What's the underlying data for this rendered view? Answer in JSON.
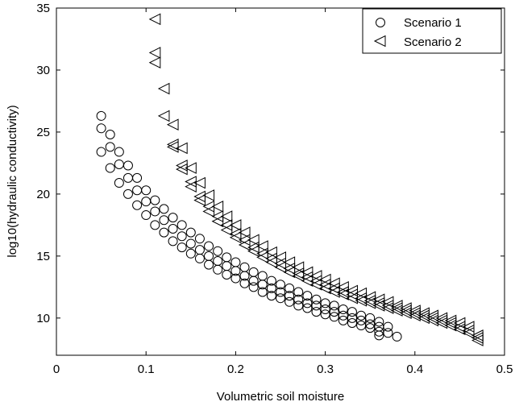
{
  "chart_data": {
    "type": "scatter",
    "xlabel": "Volumetric soil moisture",
    "ylabel": "log10(hydraulic conductivity)",
    "xlim": [
      0,
      0.5
    ],
    "ylim": [
      7,
      35
    ],
    "xticks": [
      0,
      0.1,
      0.2,
      0.3,
      0.4,
      0.5
    ],
    "xtick_labels": [
      "0",
      "0.1",
      "0.2",
      "0.3",
      "0.4",
      "0.5"
    ],
    "yticks": [
      10,
      15,
      20,
      25,
      30,
      35
    ],
    "ytick_labels": [
      "10",
      "15",
      "20",
      "25",
      "30",
      "35"
    ],
    "grid": false,
    "legend_position": "top-right",
    "series": [
      {
        "name": "Scenario 1",
        "marker": "circle",
        "color": "#000000",
        "points": [
          [
            0.05,
            26.3
          ],
          [
            0.05,
            25.3
          ],
          [
            0.05,
            23.4
          ],
          [
            0.06,
            24.8
          ],
          [
            0.06,
            23.8
          ],
          [
            0.06,
            22.1
          ],
          [
            0.07,
            23.4
          ],
          [
            0.07,
            22.4
          ],
          [
            0.07,
            20.9
          ],
          [
            0.08,
            22.3
          ],
          [
            0.08,
            21.3
          ],
          [
            0.08,
            20.0
          ],
          [
            0.09,
            21.3
          ],
          [
            0.09,
            20.3
          ],
          [
            0.09,
            19.1
          ],
          [
            0.1,
            20.3
          ],
          [
            0.1,
            19.4
          ],
          [
            0.1,
            18.3
          ],
          [
            0.11,
            19.5
          ],
          [
            0.11,
            18.6
          ],
          [
            0.11,
            17.5
          ],
          [
            0.12,
            18.8
          ],
          [
            0.12,
            17.9
          ],
          [
            0.12,
            16.9
          ],
          [
            0.13,
            18.1
          ],
          [
            0.13,
            17.2
          ],
          [
            0.13,
            16.2
          ],
          [
            0.14,
            17.5
          ],
          [
            0.14,
            16.6
          ],
          [
            0.14,
            15.7
          ],
          [
            0.15,
            16.9
          ],
          [
            0.15,
            16.0
          ],
          [
            0.15,
            15.2
          ],
          [
            0.16,
            16.4
          ],
          [
            0.16,
            15.5
          ],
          [
            0.16,
            14.8
          ],
          [
            0.17,
            15.8
          ],
          [
            0.17,
            15.0
          ],
          [
            0.17,
            14.3
          ],
          [
            0.18,
            15.4
          ],
          [
            0.18,
            14.6
          ],
          [
            0.18,
            13.9
          ],
          [
            0.19,
            14.9
          ],
          [
            0.19,
            14.2
          ],
          [
            0.19,
            13.5
          ],
          [
            0.2,
            14.5
          ],
          [
            0.2,
            13.8
          ],
          [
            0.2,
            13.2
          ],
          [
            0.21,
            14.1
          ],
          [
            0.21,
            13.4
          ],
          [
            0.21,
            12.8
          ],
          [
            0.22,
            13.7
          ],
          [
            0.22,
            13.0
          ],
          [
            0.22,
            12.5
          ],
          [
            0.23,
            13.4
          ],
          [
            0.23,
            12.7
          ],
          [
            0.23,
            12.1
          ],
          [
            0.24,
            13.0
          ],
          [
            0.24,
            12.4
          ],
          [
            0.24,
            11.8
          ],
          [
            0.25,
            12.7
          ],
          [
            0.25,
            12.1
          ],
          [
            0.25,
            11.6
          ],
          [
            0.26,
            12.4
          ],
          [
            0.26,
            11.8
          ],
          [
            0.26,
            11.3
          ],
          [
            0.27,
            12.1
          ],
          [
            0.27,
            11.5
          ],
          [
            0.27,
            11.0
          ],
          [
            0.28,
            11.8
          ],
          [
            0.28,
            11.2
          ],
          [
            0.28,
            10.8
          ],
          [
            0.29,
            11.5
          ],
          [
            0.29,
            11.0
          ],
          [
            0.29,
            10.5
          ],
          [
            0.3,
            11.2
          ],
          [
            0.3,
            10.7
          ],
          [
            0.3,
            10.3
          ],
          [
            0.31,
            11.0
          ],
          [
            0.31,
            10.5
          ],
          [
            0.31,
            10.1
          ],
          [
            0.32,
            10.7
          ],
          [
            0.32,
            10.2
          ],
          [
            0.32,
            9.8
          ],
          [
            0.33,
            10.5
          ],
          [
            0.33,
            10.0
          ],
          [
            0.33,
            9.6
          ],
          [
            0.34,
            10.2
          ],
          [
            0.34,
            9.8
          ],
          [
            0.34,
            9.4
          ],
          [
            0.35,
            10.0
          ],
          [
            0.35,
            9.5
          ],
          [
            0.35,
            9.2
          ],
          [
            0.36,
            9.7
          ],
          [
            0.36,
            9.3
          ],
          [
            0.36,
            8.9
          ],
          [
            0.36,
            8.6
          ],
          [
            0.37,
            9.3
          ],
          [
            0.37,
            8.8
          ],
          [
            0.38,
            8.5
          ]
        ]
      },
      {
        "name": "Scenario 2",
        "marker": "triangle-left",
        "color": "#000000",
        "points": [
          [
            0.11,
            34.1
          ],
          [
            0.11,
            31.4
          ],
          [
            0.11,
            30.6
          ],
          [
            0.12,
            28.5
          ],
          [
            0.12,
            26.3
          ],
          [
            0.13,
            25.6
          ],
          [
            0.13,
            24.0
          ],
          [
            0.13,
            23.8
          ],
          [
            0.14,
            23.7
          ],
          [
            0.14,
            22.3
          ],
          [
            0.14,
            22.0
          ],
          [
            0.15,
            22.1
          ],
          [
            0.15,
            21.0
          ],
          [
            0.15,
            20.6
          ],
          [
            0.16,
            20.9
          ],
          [
            0.16,
            19.8
          ],
          [
            0.16,
            19.5
          ],
          [
            0.17,
            19.9
          ],
          [
            0.17,
            19.0
          ],
          [
            0.17,
            18.6
          ],
          [
            0.18,
            19.0
          ],
          [
            0.18,
            18.2
          ],
          [
            0.18,
            17.8
          ],
          [
            0.19,
            18.2
          ],
          [
            0.19,
            17.5
          ],
          [
            0.19,
            17.1
          ],
          [
            0.2,
            17.5
          ],
          [
            0.2,
            16.8
          ],
          [
            0.2,
            16.5
          ],
          [
            0.21,
            16.9
          ],
          [
            0.21,
            16.3
          ],
          [
            0.21,
            15.9
          ],
          [
            0.22,
            16.3
          ],
          [
            0.22,
            15.7
          ],
          [
            0.22,
            15.4
          ],
          [
            0.23,
            15.8
          ],
          [
            0.23,
            15.2
          ],
          [
            0.23,
            14.9
          ],
          [
            0.24,
            15.3
          ],
          [
            0.24,
            14.8
          ],
          [
            0.24,
            14.5
          ],
          [
            0.25,
            14.9
          ],
          [
            0.25,
            14.4
          ],
          [
            0.25,
            14.1
          ],
          [
            0.26,
            14.5
          ],
          [
            0.26,
            14.0
          ],
          [
            0.26,
            13.7
          ],
          [
            0.27,
            14.1
          ],
          [
            0.27,
            13.6
          ],
          [
            0.27,
            13.4
          ],
          [
            0.28,
            13.7
          ],
          [
            0.28,
            13.3
          ],
          [
            0.28,
            13.0
          ],
          [
            0.29,
            13.4
          ],
          [
            0.29,
            13.0
          ],
          [
            0.29,
            12.7
          ],
          [
            0.3,
            13.1
          ],
          [
            0.3,
            12.7
          ],
          [
            0.3,
            12.4
          ],
          [
            0.31,
            12.8
          ],
          [
            0.31,
            12.4
          ],
          [
            0.31,
            12.1
          ],
          [
            0.32,
            12.5
          ],
          [
            0.32,
            12.1
          ],
          [
            0.32,
            11.9
          ],
          [
            0.33,
            12.2
          ],
          [
            0.33,
            11.9
          ],
          [
            0.33,
            11.6
          ],
          [
            0.34,
            12.0
          ],
          [
            0.34,
            11.6
          ],
          [
            0.34,
            11.4
          ],
          [
            0.35,
            11.7
          ],
          [
            0.35,
            11.4
          ],
          [
            0.35,
            11.2
          ],
          [
            0.36,
            11.5
          ],
          [
            0.36,
            11.2
          ],
          [
            0.36,
            11.0
          ],
          [
            0.37,
            11.3
          ],
          [
            0.37,
            11.0
          ],
          [
            0.37,
            10.8
          ],
          [
            0.38,
            11.0
          ],
          [
            0.38,
            10.8
          ],
          [
            0.38,
            10.6
          ],
          [
            0.39,
            10.8
          ],
          [
            0.39,
            10.6
          ],
          [
            0.39,
            10.4
          ],
          [
            0.4,
            10.6
          ],
          [
            0.4,
            10.4
          ],
          [
            0.4,
            10.2
          ],
          [
            0.41,
            10.4
          ],
          [
            0.41,
            10.2
          ],
          [
            0.41,
            10.0
          ],
          [
            0.42,
            10.2
          ],
          [
            0.42,
            10.0
          ],
          [
            0.42,
            9.8
          ],
          [
            0.43,
            10.0
          ],
          [
            0.43,
            9.8
          ],
          [
            0.43,
            9.6
          ],
          [
            0.44,
            9.8
          ],
          [
            0.44,
            9.6
          ],
          [
            0.44,
            9.4
          ],
          [
            0.45,
            9.6
          ],
          [
            0.45,
            9.3
          ],
          [
            0.45,
            9.1
          ],
          [
            0.46,
            9.3
          ],
          [
            0.46,
            9.0
          ],
          [
            0.46,
            8.8
          ],
          [
            0.47,
            8.6
          ],
          [
            0.47,
            8.4
          ],
          [
            0.47,
            8.2
          ]
        ]
      }
    ]
  }
}
